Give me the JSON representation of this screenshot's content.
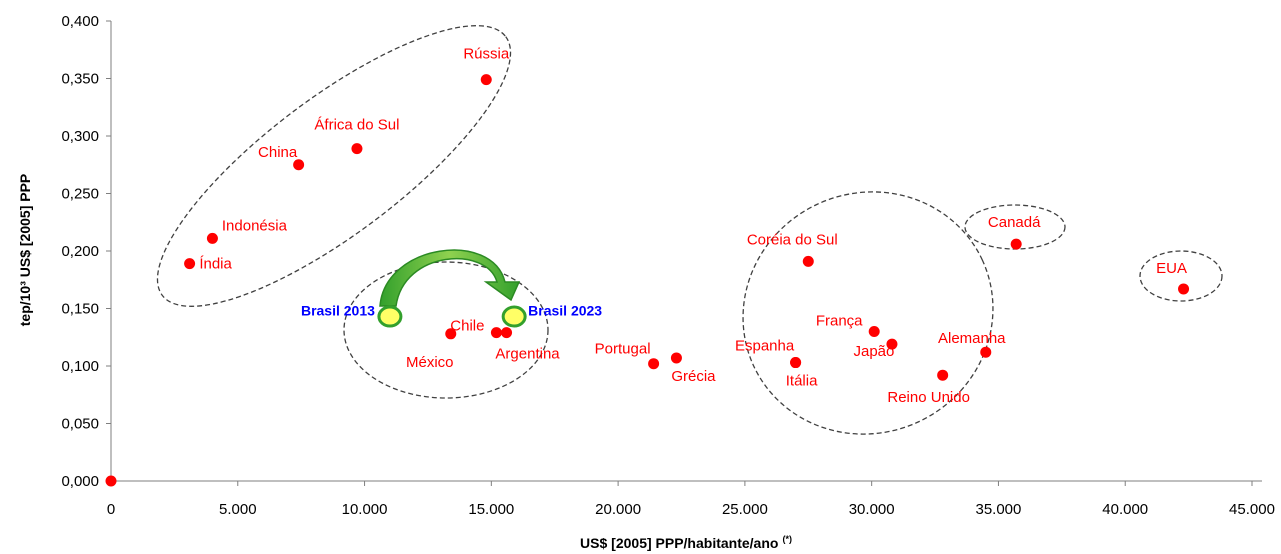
{
  "chart_data": {
    "type": "scatter",
    "xlabel": "US$ [2005] PPP/habitante/ano",
    "xlabel_suffix": "(*)",
    "ylabel": "tep/10³ US$ [2005] PPP",
    "xlim": [
      0,
      45000
    ],
    "ylim": [
      0,
      0.4
    ],
    "x_ticks": [
      0,
      5000,
      10000,
      15000,
      20000,
      25000,
      30000,
      35000,
      40000,
      45000
    ],
    "x_tick_labels": [
      "0",
      "5.000",
      "10.000",
      "15.000",
      "20.000",
      "25.000",
      "30.000",
      "35.000",
      "40.000",
      "45.000"
    ],
    "y_ticks": [
      0,
      0.05,
      0.1,
      0.15,
      0.2,
      0.25,
      0.3,
      0.35,
      0.4
    ],
    "y_tick_labels": [
      "0,000",
      "0,050",
      "0,100",
      "0,150",
      "0,200",
      "0,250",
      "0,300",
      "0,350",
      "0,400"
    ],
    "grid": false,
    "point_color": "#ff0000",
    "highlight_fill": "#ffff66",
    "highlight_stroke": "#33a02c",
    "arrow_color": "#33a02c",
    "series": [
      {
        "points": [
          {
            "label": "Rússia",
            "x": 14800,
            "y": 0.349
          },
          {
            "label": "África do Sul",
            "x": 9700,
            "y": 0.289
          },
          {
            "label": "China",
            "x": 7400,
            "y": 0.275
          },
          {
            "label": "Indonésia",
            "x": 4000,
            "y": 0.211
          },
          {
            "label": "Índia",
            "x": 3100,
            "y": 0.189
          },
          {
            "label": "México",
            "x": 13400,
            "y": 0.128
          },
          {
            "label": "Chile",
            "x": 15200,
            "y": 0.129
          },
          {
            "label": "Argentina",
            "x": 15600,
            "y": 0.129
          },
          {
            "label": "Portugal",
            "x": 21400,
            "y": 0.102
          },
          {
            "label": "Grécia",
            "x": 22300,
            "y": 0.107
          },
          {
            "label": "Espanha",
            "x": 27000,
            "y": 0.103
          },
          {
            "label": "Itália",
            "x": 27000,
            "y": 0.103
          },
          {
            "label": "Coréia do Sul",
            "x": 27500,
            "y": 0.191
          },
          {
            "label": "França",
            "x": 30100,
            "y": 0.13
          },
          {
            "label": "Japão",
            "x": 30800,
            "y": 0.119
          },
          {
            "label": "Reino Unido",
            "x": 32800,
            "y": 0.092
          },
          {
            "label": "Alemanha",
            "x": 34500,
            "y": 0.112
          },
          {
            "label": "Canadá",
            "x": 35700,
            "y": 0.206
          },
          {
            "label": "EUA",
            "x": 42300,
            "y": 0.167
          },
          {
            "label": "",
            "x": 0,
            "y": 0.0
          }
        ]
      }
    ],
    "highlights": [
      {
        "label": "Brasil 2013",
        "x": 11000,
        "y": 0.143
      },
      {
        "label": "Brasil 2023",
        "x": 15900,
        "y": 0.143
      }
    ]
  }
}
